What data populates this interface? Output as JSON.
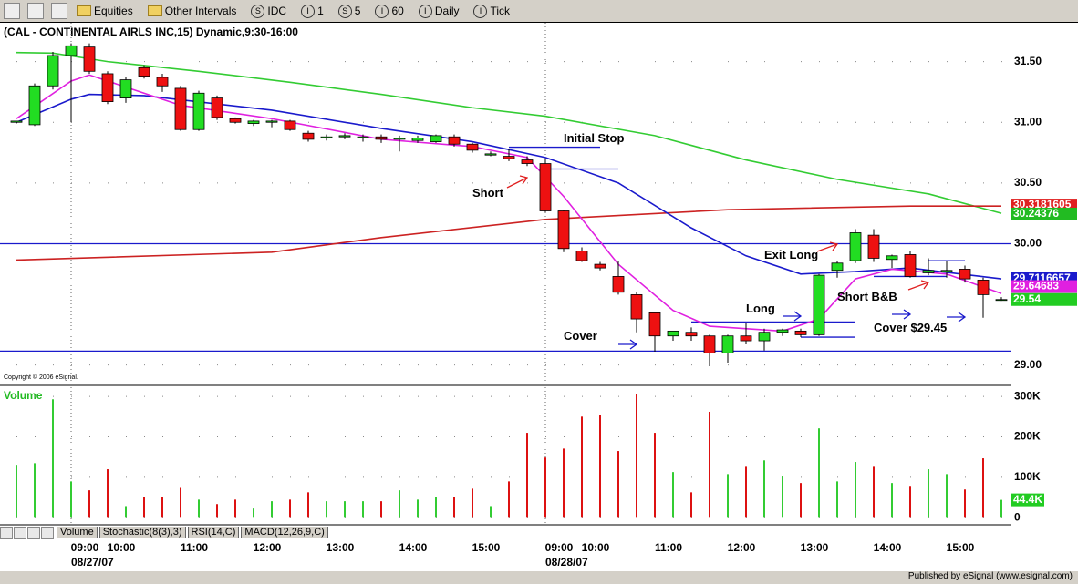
{
  "toolbar": {
    "items": [
      {
        "label": "Equities"
      },
      {
        "label": "Other Intervals"
      },
      {
        "icon": "S",
        "label": "IDC"
      },
      {
        "icon": "I",
        "label": "1"
      },
      {
        "icon": "S",
        "label": "5"
      },
      {
        "icon": "I",
        "label": "60"
      },
      {
        "icon": "I",
        "label": "Daily"
      },
      {
        "icon": "I",
        "label": "Tick"
      }
    ]
  },
  "tabs": [
    "Volume",
    "Stochastic(8(3),3)",
    "RSI(14,C)",
    "MACD(12,26,9,C)"
  ],
  "footer": "Published by eSignal (www.esignal.com)",
  "chart_data": [
    {
      "type": "candlestick",
      "title": "(CAL - CONTINENTAL AIRLS INC,15) Dynamic,9:30-16:00",
      "copyright": "Copyright © 2006 eSignal.",
      "up_color": "#22dd22",
      "down_color": "#ee1111",
      "open": [
        31.0,
        30.98,
        31.3,
        31.55,
        31.62,
        31.4,
        31.2,
        31.45,
        31.37,
        31.28,
        30.94,
        31.2,
        31.03,
        30.99,
        31.0,
        31.01,
        30.91,
        30.87,
        30.88,
        30.87,
        30.88,
        30.86,
        30.85,
        30.84,
        30.88,
        30.82,
        30.73,
        30.72,
        30.69,
        30.66,
        30.27,
        29.94,
        29.83,
        29.73,
        29.58,
        29.43,
        29.24,
        29.27,
        29.24,
        29.1,
        29.24,
        29.2,
        29.27,
        29.28,
        29.25,
        29.78,
        29.86,
        30.07,
        29.87,
        29.91,
        29.76,
        29.77,
        29.79,
        29.7,
        29.54
      ],
      "high": [
        31.01,
        31.32,
        31.58,
        31.65,
        31.65,
        31.42,
        31.37,
        31.47,
        31.4,
        31.3,
        31.26,
        31.22,
        31.04,
        31.02,
        31.02,
        31.02,
        30.93,
        30.9,
        30.91,
        30.9,
        30.9,
        30.89,
        30.89,
        30.9,
        30.9,
        30.83,
        30.76,
        30.78,
        30.72,
        30.7,
        30.28,
        29.97,
        29.85,
        29.86,
        29.6,
        29.44,
        29.28,
        29.31,
        29.25,
        29.25,
        29.35,
        29.3,
        29.3,
        29.3,
        29.75,
        29.86,
        30.12,
        30.12,
        29.91,
        29.94,
        29.88,
        29.86,
        29.82,
        29.72,
        29.56
      ],
      "low": [
        30.99,
        30.97,
        31.27,
        31.0,
        31.4,
        31.15,
        31.16,
        31.36,
        31.25,
        30.93,
        30.93,
        31.02,
        30.99,
        30.97,
        30.96,
        30.93,
        30.84,
        30.85,
        30.86,
        30.84,
        30.83,
        30.76,
        30.83,
        30.83,
        30.8,
        30.75,
        30.72,
        30.68,
        30.64,
        30.26,
        29.93,
        29.85,
        29.78,
        29.58,
        29.27,
        29.11,
        29.2,
        29.2,
        28.99,
        29.02,
        29.17,
        29.12,
        29.24,
        29.23,
        29.24,
        29.72,
        29.84,
        29.85,
        29.8,
        29.72,
        29.74,
        29.72,
        29.68,
        29.39,
        29.53
      ],
      "close": [
        31.01,
        31.3,
        31.55,
        31.63,
        31.42,
        31.17,
        31.35,
        31.38,
        31.3,
        30.94,
        31.24,
        31.04,
        31.0,
        31.01,
        31.01,
        30.94,
        30.86,
        30.88,
        30.89,
        30.88,
        30.86,
        30.87,
        30.87,
        30.89,
        30.82,
        30.77,
        30.74,
        30.7,
        30.66,
        30.27,
        29.96,
        29.86,
        29.8,
        29.6,
        29.38,
        29.24,
        29.28,
        29.24,
        29.1,
        29.24,
        29.2,
        29.27,
        29.29,
        29.25,
        29.74,
        29.84,
        30.09,
        29.88,
        29.9,
        29.73,
        29.78,
        29.78,
        29.71,
        29.58,
        29.54
      ],
      "xlim": [
        -0.9,
        54.5
      ],
      "ylim": [
        28.84,
        31.82
      ],
      "yticks": [
        {
          "value": 29,
          "label": "29.00"
        },
        {
          "value": 30,
          "label": "30.00"
        },
        {
          "value": 30.5,
          "label": "30.50"
        },
        {
          "value": 31,
          "label": "31.00"
        },
        {
          "value": 31.5,
          "label": "31.50"
        }
      ],
      "xticks": [
        {
          "value": 3.75,
          "label": "09:00"
        },
        {
          "value": 5.75,
          "label": "10:00"
        },
        {
          "value": 9.75,
          "label": "11:00"
        },
        {
          "value": 13.75,
          "label": "12:00"
        },
        {
          "value": 17.75,
          "label": "13:00"
        },
        {
          "value": 21.75,
          "label": "14:00"
        },
        {
          "value": 25.75,
          "label": "15:00"
        },
        {
          "value": 29.75,
          "label": "09:00"
        },
        {
          "value": 31.75,
          "label": "10:00"
        },
        {
          "value": 35.75,
          "label": "11:00"
        },
        {
          "value": 39.75,
          "label": "12:00"
        },
        {
          "value": 43.75,
          "label": "13:00"
        },
        {
          "value": 47.75,
          "label": "14:00"
        },
        {
          "value": 51.75,
          "label": "15:00"
        }
      ],
      "date_ticks": [
        {
          "value": 3,
          "label": "08/27/07"
        },
        {
          "value": 29,
          "label": "08/28/07"
        }
      ],
      "lines": [
        {
          "color": "#33cc33",
          "x": [
            0,
            2,
            5,
            10,
            15,
            20,
            25,
            29,
            35,
            40,
            45,
            50,
            54
          ],
          "values": [
            31.575,
            31.57,
            31.5,
            31.42,
            31.33,
            31.23,
            31.12,
            31.05,
            30.89,
            30.69,
            30.53,
            30.41,
            30.25
          ]
        },
        {
          "color": "#cc2222",
          "x": [
            0,
            14,
            20,
            29,
            39,
            49,
            54
          ],
          "values": [
            29.865,
            29.93,
            30.05,
            30.2,
            30.28,
            30.31,
            30.31
          ]
        },
        {
          "color": "#1a1acc",
          "x": [
            0,
            3,
            4,
            7,
            14,
            20,
            25,
            29,
            33,
            37,
            40,
            43,
            46,
            49,
            54
          ],
          "values": [
            31.0,
            31.19,
            31.23,
            31.22,
            31.1,
            30.95,
            30.84,
            30.71,
            30.5,
            30.13,
            29.9,
            29.75,
            29.77,
            29.8,
            29.71
          ]
        },
        {
          "color": "#e020e0",
          "x": [
            0,
            3,
            4,
            6,
            9,
            14,
            20,
            25,
            28,
            30,
            33,
            36,
            38,
            42,
            44,
            46,
            48,
            51,
            54
          ],
          "values": [
            31.03,
            31.34,
            31.39,
            31.29,
            31.14,
            31.03,
            30.86,
            30.8,
            30.71,
            30.39,
            29.83,
            29.45,
            29.32,
            29.28,
            29.38,
            29.71,
            29.79,
            29.75,
            29.59
          ]
        }
      ],
      "levels": [
        {
          "value": 30.0,
          "color": "#1a1acc",
          "full": true
        },
        {
          "value": 29.115,
          "color": "#1a1acc",
          "full": true
        },
        {
          "value": 30.795,
          "color": "#1a1acc",
          "from": 27,
          "to": 32
        },
        {
          "value": 30.615,
          "color": "#1a1acc",
          "from": 29,
          "to": 33
        },
        {
          "value": 29.355,
          "color": "#1a1acc",
          "from": 37,
          "to": 46
        },
        {
          "value": 29.23,
          "color": "#1a1acc",
          "from": 43,
          "to": 46
        },
        {
          "value": 29.86,
          "color": "#1a1acc",
          "from": 50,
          "to": 52
        },
        {
          "value": 29.73,
          "color": "#1a1acc",
          "from": 47,
          "to": 51
        }
      ],
      "annotations": [
        {
          "text": "Initial Stop",
          "x": 30,
          "y": 30.863
        },
        {
          "text": "Short",
          "x": 25,
          "y": 30.413
        },
        {
          "text": "Cover",
          "x": 30,
          "y": 29.235
        },
        {
          "text": "Long",
          "x": 40,
          "y": 29.46
        },
        {
          "text": "Exit Long",
          "x": 41,
          "y": 29.9
        },
        {
          "text": "Short B&B",
          "x": 45,
          "y": 29.557
        },
        {
          "text": "Cover $29.45",
          "x": 47,
          "y": 29.3
        }
      ],
      "price_labels": [
        {
          "value": 30.3181605,
          "color": "#e02020"
        },
        {
          "value": 30.24376,
          "color": "#22bb22"
        },
        {
          "value": 29.7116657,
          "color": "#1a1acc"
        },
        {
          "value": 29.64683,
          "color": "#e020e0"
        },
        {
          "value": 29.54,
          "color": "#22cc22"
        }
      ]
    },
    {
      "type": "bar",
      "title": "Volume",
      "title_color": "#22bb22",
      "up_color": "#33cc33",
      "down_color": "#dd1111",
      "values": [
        131000,
        135000,
        293000,
        90000,
        68000,
        120000,
        29000,
        52000,
        52000,
        74000,
        45000,
        34000,
        45000,
        23000,
        41000,
        45000,
        63000,
        41000,
        41000,
        41000,
        41000,
        68000,
        45000,
        52000,
        52000,
        72000,
        29000,
        90000,
        210000,
        149000,
        171000,
        250000,
        255000,
        165000,
        307000,
        210000,
        113000,
        63000,
        262000,
        108000,
        126000,
        142000,
        102000,
        86000,
        221000,
        90000,
        138000,
        126000,
        86000,
        79000,
        120000,
        108000,
        70000,
        147000,
        44400
      ],
      "ylim": [
        -15000,
        325000
      ],
      "yticks": [
        0,
        {
          "value": 100000,
          "label": "100K"
        },
        {
          "value": 200000,
          "label": "200K"
        },
        {
          "value": 300000,
          "label": "300K"
        }
      ],
      "last_label": {
        "value": 44400,
        "label": "44.4K",
        "color": "#22cc22"
      }
    }
  ]
}
